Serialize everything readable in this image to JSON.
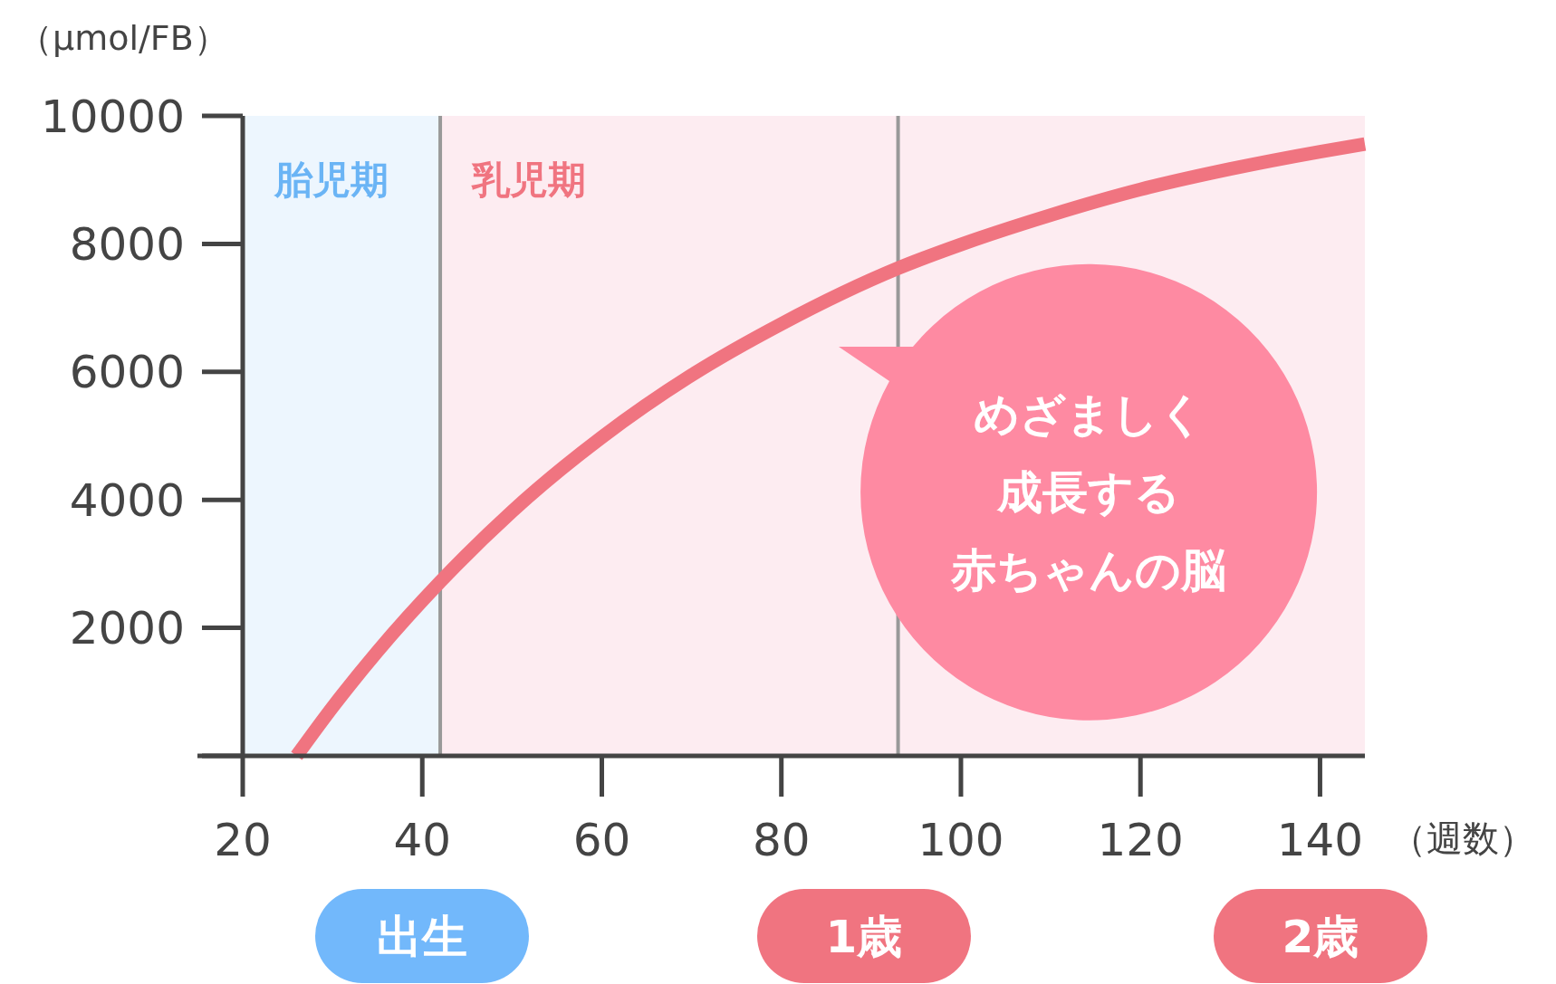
{
  "chart_data": {
    "type": "line",
    "ylabel": "（µmol/FB）",
    "xlabel": "（週数）",
    "xlim": [
      20,
      145
    ],
    "xticks": [
      20,
      40,
      60,
      80,
      100,
      120,
      140
    ],
    "ylim": [
      0,
      10000
    ],
    "yticks": [
      {
        "value": 0,
        "label": null
      },
      2000,
      4000,
      6000,
      8000,
      10000
    ],
    "series": [
      {
        "color": "#f07480",
        "x": [
          26,
          30,
          35,
          42,
          50,
          60,
          70,
          80,
          93,
          100,
          110,
          120,
          130,
          140,
          145
        ],
        "values": [
          0,
          760,
          1630,
          2720,
          3820,
          4980,
          5950,
          6750,
          7620,
          7990,
          8450,
          8850,
          9170,
          9440,
          9560
        ]
      }
    ],
    "bands": [
      {
        "axis": "x",
        "from": 20,
        "to": 42,
        "label": "胎児期",
        "color": "#edf6fe"
      },
      {
        "axis": "x",
        "from": 42,
        "to": 145,
        "label": "乳児期",
        "color": "#fdecf1"
      }
    ],
    "ref_lines": [
      {
        "axis": "x",
        "value": 42,
        "color": "#999999"
      },
      {
        "axis": "x",
        "value": 93,
        "color": "#999999"
      }
    ],
    "annotations": [
      "めざましく成長する赤ちゃんの脳",
      "出生",
      "1歳",
      "2歳"
    ],
    "grid": false,
    "line_style": "solid",
    "marker": "none"
  }
}
